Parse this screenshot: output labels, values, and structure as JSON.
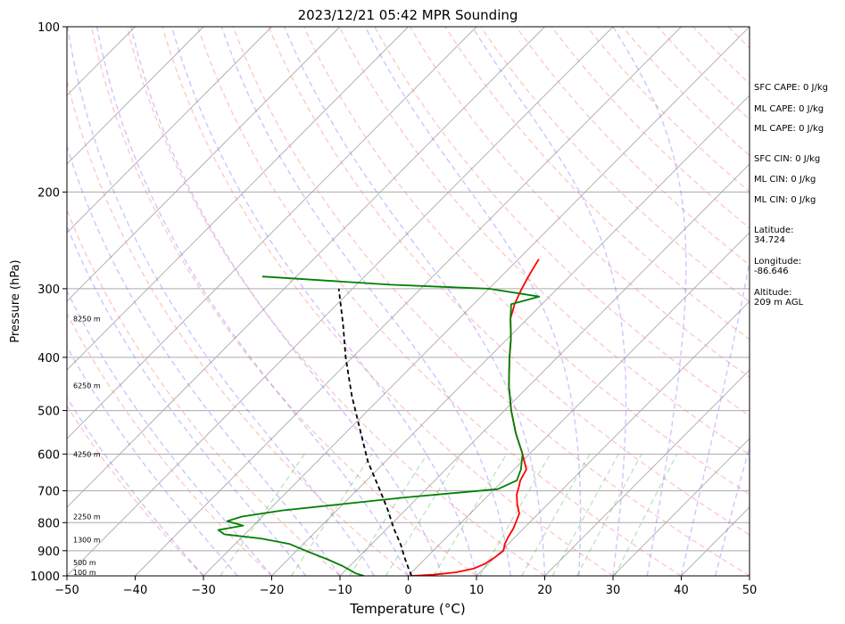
{
  "chart_data": {
    "type": "line",
    "title": "2023/12/21 05:42 MPR Sounding",
    "xlabel": "Temperature (°C)",
    "ylabel": "Pressure (hPa)",
    "xlim": [
      -50,
      50
    ],
    "ylim": [
      1000,
      100
    ],
    "yscale": "log",
    "xticks": [
      -50,
      -40,
      -30,
      -20,
      -10,
      0,
      10,
      20,
      30,
      40,
      50
    ],
    "yticks": [
      1000,
      900,
      800,
      700,
      600,
      500,
      400,
      300,
      200,
      100
    ],
    "grid": "horizontal pressure lines and skewed isotherms",
    "series": [
      {
        "color": "#ff0000",
        "pressure": [
          1000,
          995,
          985,
          970,
          950,
          925,
          900,
          875,
          850,
          820,
          800,
          770,
          740,
          710,
          690,
          670,
          640,
          600,
          550,
          500,
          450,
          400,
          370,
          340,
          320,
          300,
          285,
          275,
          265
        ],
        "values": [
          0.5,
          3.5,
          6.5,
          8.5,
          9.5,
          10.0,
          10.3,
          9.5,
          9.0,
          8.5,
          8.0,
          7.2,
          5.5,
          4.0,
          3.3,
          2.5,
          1.8,
          -1.0,
          -5.0,
          -9.0,
          -13.0,
          -17.0,
          -19.5,
          -22.5,
          -24.0,
          -25.2,
          -26.0,
          -26.5,
          -27.0
        ]
      },
      {
        "color": "#008000",
        "pressure": [
          1000,
          990,
          960,
          935,
          905,
          875,
          855,
          840,
          825,
          810,
          795,
          780,
          760,
          740,
          720,
          695,
          670,
          640,
          600,
          550,
          500,
          450,
          400,
          370,
          340,
          320,
          310,
          300,
          295,
          285
        ],
        "values": [
          -6.5,
          -8.0,
          -11.0,
          -14.0,
          -18.0,
          -22.0,
          -27.0,
          -33.0,
          -34.5,
          -31.5,
          -34.5,
          -33.0,
          -28.0,
          -20.0,
          -12.0,
          0.5,
          2.0,
          1.0,
          -1.0,
          -5.0,
          -9.0,
          -13.0,
          -17.0,
          -19.5,
          -22.5,
          -24.5,
          -21.5,
          -30.0,
          -45.0,
          -65.0
        ]
      },
      {
        "color": "#000000",
        "style": "dashed",
        "pressure": [
          1000,
          970,
          930,
          880,
          820,
          760,
          700,
          620,
          540,
          470,
          400,
          350,
          300
        ],
        "values": [
          0.5,
          -1.0,
          -3.0,
          -5.5,
          -9.0,
          -12.5,
          -16.5,
          -22.5,
          -28.5,
          -34.5,
          -41.0,
          -46.0,
          -52.0
        ]
      }
    ],
    "height_labels": [
      "100 m",
      "500 m",
      "1300 m",
      "2250 m",
      "4250 m",
      "6250 m",
      "8250 m"
    ],
    "height_pressures": [
      985,
      945,
      860,
      780,
      600,
      450,
      340
    ]
  },
  "annotations": {
    "sfc_cape": "SFC CAPE: 0 J/kg",
    "ml_cape_1": "ML CAPE: 0 J/kg",
    "ml_cape_2": "ML CAPE: 0 J/kg",
    "sfc_cin": "SFC CIN: 0 J/kg",
    "ml_cin_1": "ML CIN: 0 J/kg",
    "ml_cin_2": "ML CIN: 0 J/kg",
    "latitude": "Latitude:\n34.724",
    "longitude": "Longitude:\n-86.646",
    "altitude": "Altitude:\n209 m AGL"
  }
}
